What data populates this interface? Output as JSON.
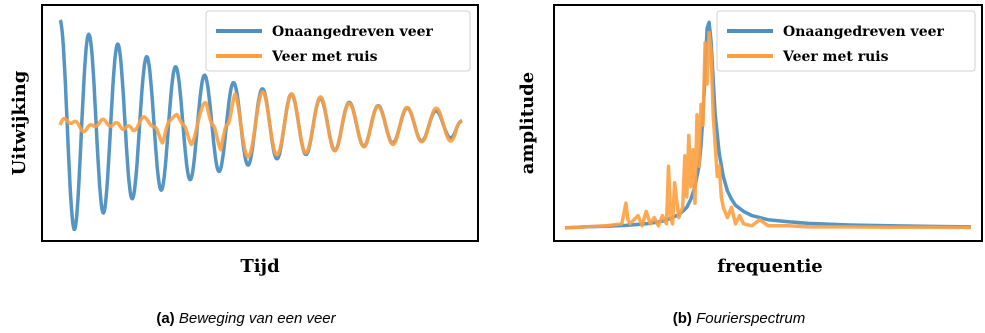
{
  "colors": {
    "series_blue": "#4c8fc1",
    "series_orange": "#ff9e3f",
    "frame": "#000000",
    "background": "#ffffff"
  },
  "captions": [
    {
      "label": "(a)",
      "text": "Beweging van een veer"
    },
    {
      "label": "(b)",
      "text": "Fourierspectrum"
    }
  ],
  "chart_data": [
    {
      "type": "line",
      "title": "",
      "xlabel": "Tijd",
      "ylabel": "Uitwijking",
      "ylim": [
        -1.05,
        1.05
      ],
      "xlim": [
        0,
        10
      ],
      "grid": false,
      "legend_position": "top-right",
      "series": [
        {
          "name": "Onaangedreven veer",
          "color": "#4c8fc1",
          "x": [
            0.0,
            0.18,
            0.36,
            0.55,
            0.73,
            0.91,
            1.09,
            1.27,
            1.45,
            1.64,
            1.82,
            2.0,
            2.18,
            2.36,
            2.55,
            2.73,
            2.91,
            3.09,
            3.27,
            3.45,
            3.64,
            3.82,
            4.0,
            4.18,
            4.36,
            4.55,
            4.73,
            4.91,
            5.09,
            5.27,
            5.45,
            5.64,
            5.82,
            6.0,
            6.18,
            6.36,
            6.55,
            6.73,
            6.91,
            7.09,
            7.27,
            7.45,
            7.64,
            7.82,
            8.0,
            8.18,
            8.36,
            8.55,
            8.73,
            8.91,
            9.09,
            9.27,
            9.45,
            9.64,
            9.82,
            10.0
          ],
          "y": [
            1.0,
            0.0,
            -1.0,
            0.0,
            0.86,
            0.0,
            -0.84,
            0.0,
            0.77,
            0.0,
            -0.7,
            0.0,
            0.65,
            0.0,
            -0.62,
            0.0,
            0.55,
            0.0,
            -0.52,
            0.0,
            0.47,
            0.0,
            -0.44,
            0.0,
            0.4,
            0.0,
            -0.38,
            0.0,
            0.34,
            0.0,
            -0.32,
            0.0,
            0.29,
            0.0,
            -0.28,
            0.0,
            0.25,
            0.0,
            -0.24,
            0.0,
            0.21,
            0.0,
            -0.2,
            0.0,
            0.18,
            0.0,
            -0.17,
            0.0,
            0.16,
            0.0,
            -0.15,
            0.0,
            0.13,
            0.0,
            -0.12,
            0.05
          ]
        },
        {
          "name": "Veer met ruis",
          "color": "#ff9e3f",
          "x": [
            0.0,
            0.18,
            0.36,
            0.55,
            0.73,
            0.91,
            1.09,
            1.27,
            1.45,
            1.64,
            1.82,
            2.0,
            2.18,
            2.36,
            2.55,
            2.73,
            2.91,
            3.09,
            3.27,
            3.45,
            3.64,
            3.82,
            4.0,
            4.18,
            4.36,
            4.55,
            4.73,
            4.91,
            5.09,
            5.27,
            5.45,
            5.64,
            5.82,
            6.0,
            6.18,
            6.36,
            6.55,
            6.73,
            6.91,
            7.09,
            7.27,
            7.45,
            7.64,
            7.82,
            8.0,
            8.18,
            8.36,
            8.55,
            8.73,
            8.91,
            9.09,
            9.27,
            9.45,
            9.64,
            9.82,
            10.0
          ],
          "y": [
            0.0,
            0.05,
            -0.05,
            -0.02,
            0.04,
            0.01,
            -0.03,
            0.06,
            0.1,
            0.02,
            -0.18,
            0.0,
            0.12,
            0.05,
            -0.28,
            0.06,
            0.16,
            0.02,
            -0.24,
            0.0,
            0.26,
            0.02,
            -0.28,
            0.03,
            0.33,
            0.0,
            -0.3,
            0.0,
            0.32,
            0.0,
            -0.28,
            0.0,
            0.3,
            0.0,
            -0.26,
            0.0,
            0.27,
            0.0,
            -0.24,
            0.0,
            0.2,
            0.0,
            -0.21,
            0.0,
            0.17,
            0.0,
            -0.19,
            0.0,
            0.16,
            0.0,
            -0.16,
            0.0,
            0.16,
            0.0,
            -0.15,
            0.03
          ]
        }
      ]
    },
    {
      "type": "line",
      "title": "",
      "xlabel": "frequentie",
      "ylabel": "amplitude",
      "ylim": [
        -0.02,
        1.05
      ],
      "xlim": [
        0,
        100
      ],
      "grid": false,
      "legend_position": "top-right",
      "series": [
        {
          "name": "Onaangedreven veer",
          "color": "#4c8fc1",
          "x": [
            0,
            5,
            10,
            15,
            20,
            22,
            24,
            26,
            28,
            29,
            30,
            31,
            32,
            33,
            33.5,
            34,
            34.5,
            35,
            35.5,
            36,
            36.5,
            37,
            38,
            39,
            40,
            41,
            42,
            44,
            46,
            48,
            50,
            55,
            60,
            70,
            80,
            90,
            100
          ],
          "y": [
            0.0,
            0.005,
            0.008,
            0.012,
            0.02,
            0.025,
            0.033,
            0.045,
            0.065,
            0.08,
            0.1,
            0.14,
            0.2,
            0.3,
            0.4,
            0.55,
            0.75,
            0.97,
            1.0,
            0.9,
            0.72,
            0.55,
            0.36,
            0.25,
            0.18,
            0.14,
            0.11,
            0.08,
            0.06,
            0.05,
            0.04,
            0.03,
            0.022,
            0.014,
            0.01,
            0.007,
            0.005
          ]
        },
        {
          "name": "Veer met ruis",
          "color": "#ff9e3f",
          "x": [
            0,
            5,
            10,
            14,
            15,
            15.5,
            16,
            18,
            19,
            20,
            21,
            22,
            23,
            24,
            25,
            25.5,
            26,
            26.5,
            27,
            28,
            29,
            29.5,
            30,
            30.5,
            31,
            31.5,
            32,
            32.5,
            33,
            33.5,
            34,
            34.5,
            35,
            35.5,
            36,
            36.5,
            37,
            37.5,
            38,
            38.5,
            39,
            40,
            41,
            42,
            43,
            44,
            46,
            48,
            50,
            55,
            60,
            70,
            80,
            90,
            100
          ],
          "y": [
            0.0,
            0.005,
            0.01,
            0.02,
            0.12,
            0.04,
            0.02,
            0.06,
            0.01,
            0.08,
            0.02,
            0.05,
            0.01,
            0.06,
            0.02,
            0.3,
            0.05,
            0.02,
            0.22,
            0.05,
            0.1,
            0.35,
            0.15,
            0.45,
            0.2,
            0.38,
            0.12,
            0.55,
            0.3,
            0.6,
            0.5,
            0.9,
            0.7,
            0.95,
            0.85,
            0.55,
            0.4,
            0.25,
            0.3,
            0.15,
            0.1,
            0.05,
            0.1,
            0.02,
            0.06,
            0.02,
            0.01,
            0.04,
            0.01,
            0.01,
            0.005,
            0.005,
            0.003,
            0.003,
            0.002
          ]
        }
      ]
    }
  ]
}
